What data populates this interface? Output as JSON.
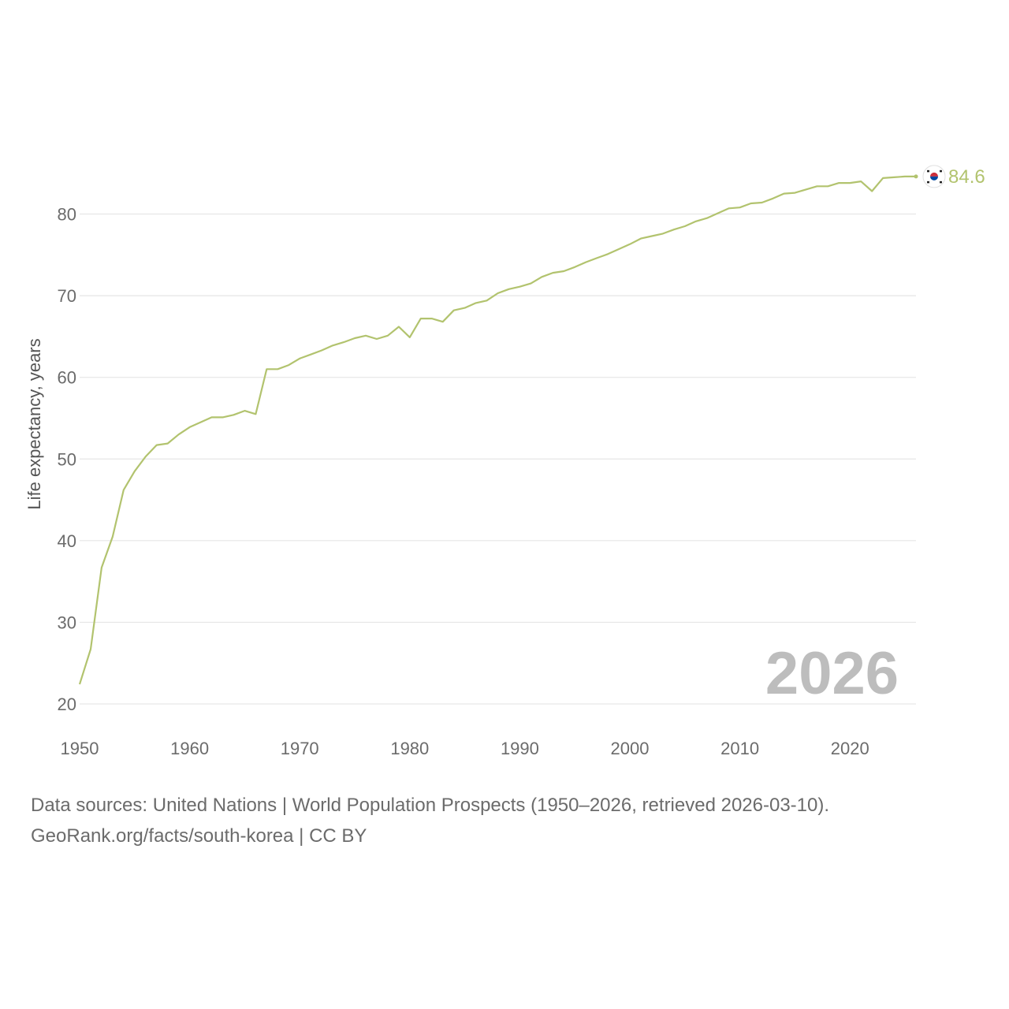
{
  "chart_data": {
    "type": "line",
    "ylabel": "Life expectancy, years",
    "xlabel": "",
    "xlim": [
      1950,
      2026
    ],
    "ylim": [
      20,
      87
    ],
    "y_ticks": [
      20,
      30,
      40,
      50,
      60,
      70,
      80
    ],
    "x_ticks": [
      1950,
      1960,
      1970,
      1980,
      1990,
      2000,
      2010,
      2020
    ],
    "grid": true,
    "year_label": "2026",
    "line_color": "#b2c36e",
    "series": [
      {
        "name": "South Korea",
        "end_value_label": "84.6",
        "flag_icon": "south-korea-flag-icon",
        "x": [
          1950,
          1951,
          1952,
          1953,
          1954,
          1955,
          1956,
          1957,
          1958,
          1959,
          1960,
          1961,
          1962,
          1963,
          1964,
          1965,
          1966,
          1967,
          1968,
          1969,
          1970,
          1971,
          1972,
          1973,
          1974,
          1975,
          1976,
          1977,
          1978,
          1979,
          1980,
          1981,
          1982,
          1983,
          1984,
          1985,
          1986,
          1987,
          1988,
          1989,
          1990,
          1991,
          1992,
          1993,
          1994,
          1995,
          1996,
          1997,
          1998,
          1999,
          2000,
          2001,
          2002,
          2003,
          2004,
          2005,
          2006,
          2007,
          2008,
          2009,
          2010,
          2011,
          2012,
          2013,
          2014,
          2015,
          2016,
          2017,
          2018,
          2019,
          2020,
          2021,
          2022,
          2023,
          2024,
          2025,
          2026
        ],
        "values": [
          22.4,
          26.7,
          36.7,
          40.5,
          46.2,
          48.5,
          50.3,
          51.7,
          51.9,
          53.0,
          53.9,
          54.5,
          55.1,
          55.1,
          55.4,
          55.9,
          55.5,
          61.0,
          61.0,
          61.5,
          62.3,
          62.8,
          63.3,
          63.9,
          64.3,
          64.8,
          65.1,
          64.7,
          65.1,
          66.2,
          64.9,
          67.2,
          67.2,
          66.8,
          68.2,
          68.5,
          69.1,
          69.4,
          70.3,
          70.8,
          71.1,
          71.5,
          72.3,
          72.8,
          73.0,
          73.5,
          74.1,
          74.6,
          75.1,
          75.7,
          76.3,
          77.0,
          77.3,
          77.6,
          78.1,
          78.5,
          79.1,
          79.5,
          80.1,
          80.7,
          80.8,
          81.3,
          81.4,
          81.9,
          82.5,
          82.6,
          83.0,
          83.4,
          83.4,
          83.8,
          83.8,
          84.0,
          82.8,
          84.4,
          84.5,
          84.6,
          84.6
        ]
      }
    ]
  },
  "footer": {
    "sources": "Data sources: United Nations | World Population Prospects (1950–2026, retrieved 2026-03-10).",
    "credit": "GeoRank.org/facts/south-korea | CC BY"
  }
}
